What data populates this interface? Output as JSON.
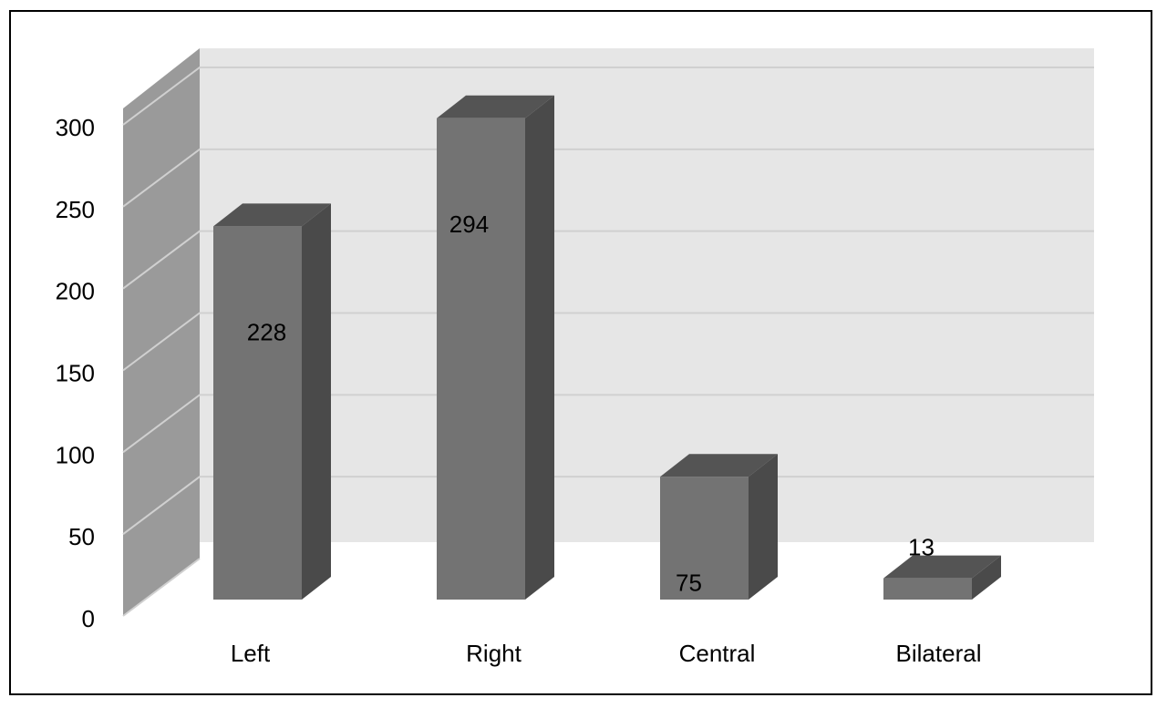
{
  "chart_data": {
    "type": "bar",
    "categories": [
      "Left",
      "Right",
      "Central",
      "Bilateral"
    ],
    "values": [
      228,
      294,
      75,
      13
    ],
    "data_labels": [
      "228",
      "294",
      "75",
      "13"
    ],
    "title": "",
    "xlabel": "",
    "ylabel": "",
    "ylim": [
      0,
      300
    ],
    "yticks": [
      0,
      50,
      100,
      150,
      200,
      250,
      300
    ],
    "ytick_labels": [
      "0",
      "50",
      "100",
      "150",
      "200",
      "250",
      "300"
    ],
    "grid": true,
    "legend": "none",
    "style": "3d-column",
    "colors": {
      "bar_front": "#737373",
      "bar_side": "#4a4a4a",
      "bar_top": "#545454",
      "back_wall": "#e6e6e6",
      "side_wall": "#9a9a9a",
      "gridline": "#d0d0d0"
    }
  }
}
